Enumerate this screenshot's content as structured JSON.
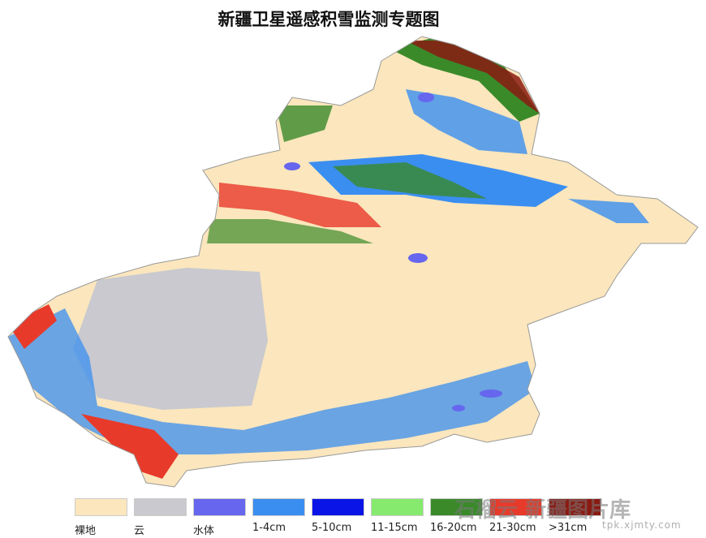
{
  "title": "新疆卫星遥感积雪监测专题图",
  "legend": [
    {
      "label": "裸地",
      "color": "#fbe6bd"
    },
    {
      "label": "云",
      "color": "#c9c9cf"
    },
    {
      "label": "水体",
      "color": "#6666ee"
    },
    {
      "label": "1-4cm",
      "color": "#3a8ef0"
    },
    {
      "label": "5-10cm",
      "color": "#0a14e6"
    },
    {
      "label": "11-15cm",
      "color": "#86ea6e"
    },
    {
      "label": "16-20cm",
      "color": "#3a8a2a"
    },
    {
      "label": "21-30cm",
      "color": "#e83a2a"
    },
    {
      "label": ">31cm",
      "color": "#8a1a12"
    }
  ],
  "watermark": {
    "logo": "石榴云",
    "name": "新疆图片库",
    "url": "tpk.xjmty.com"
  }
}
